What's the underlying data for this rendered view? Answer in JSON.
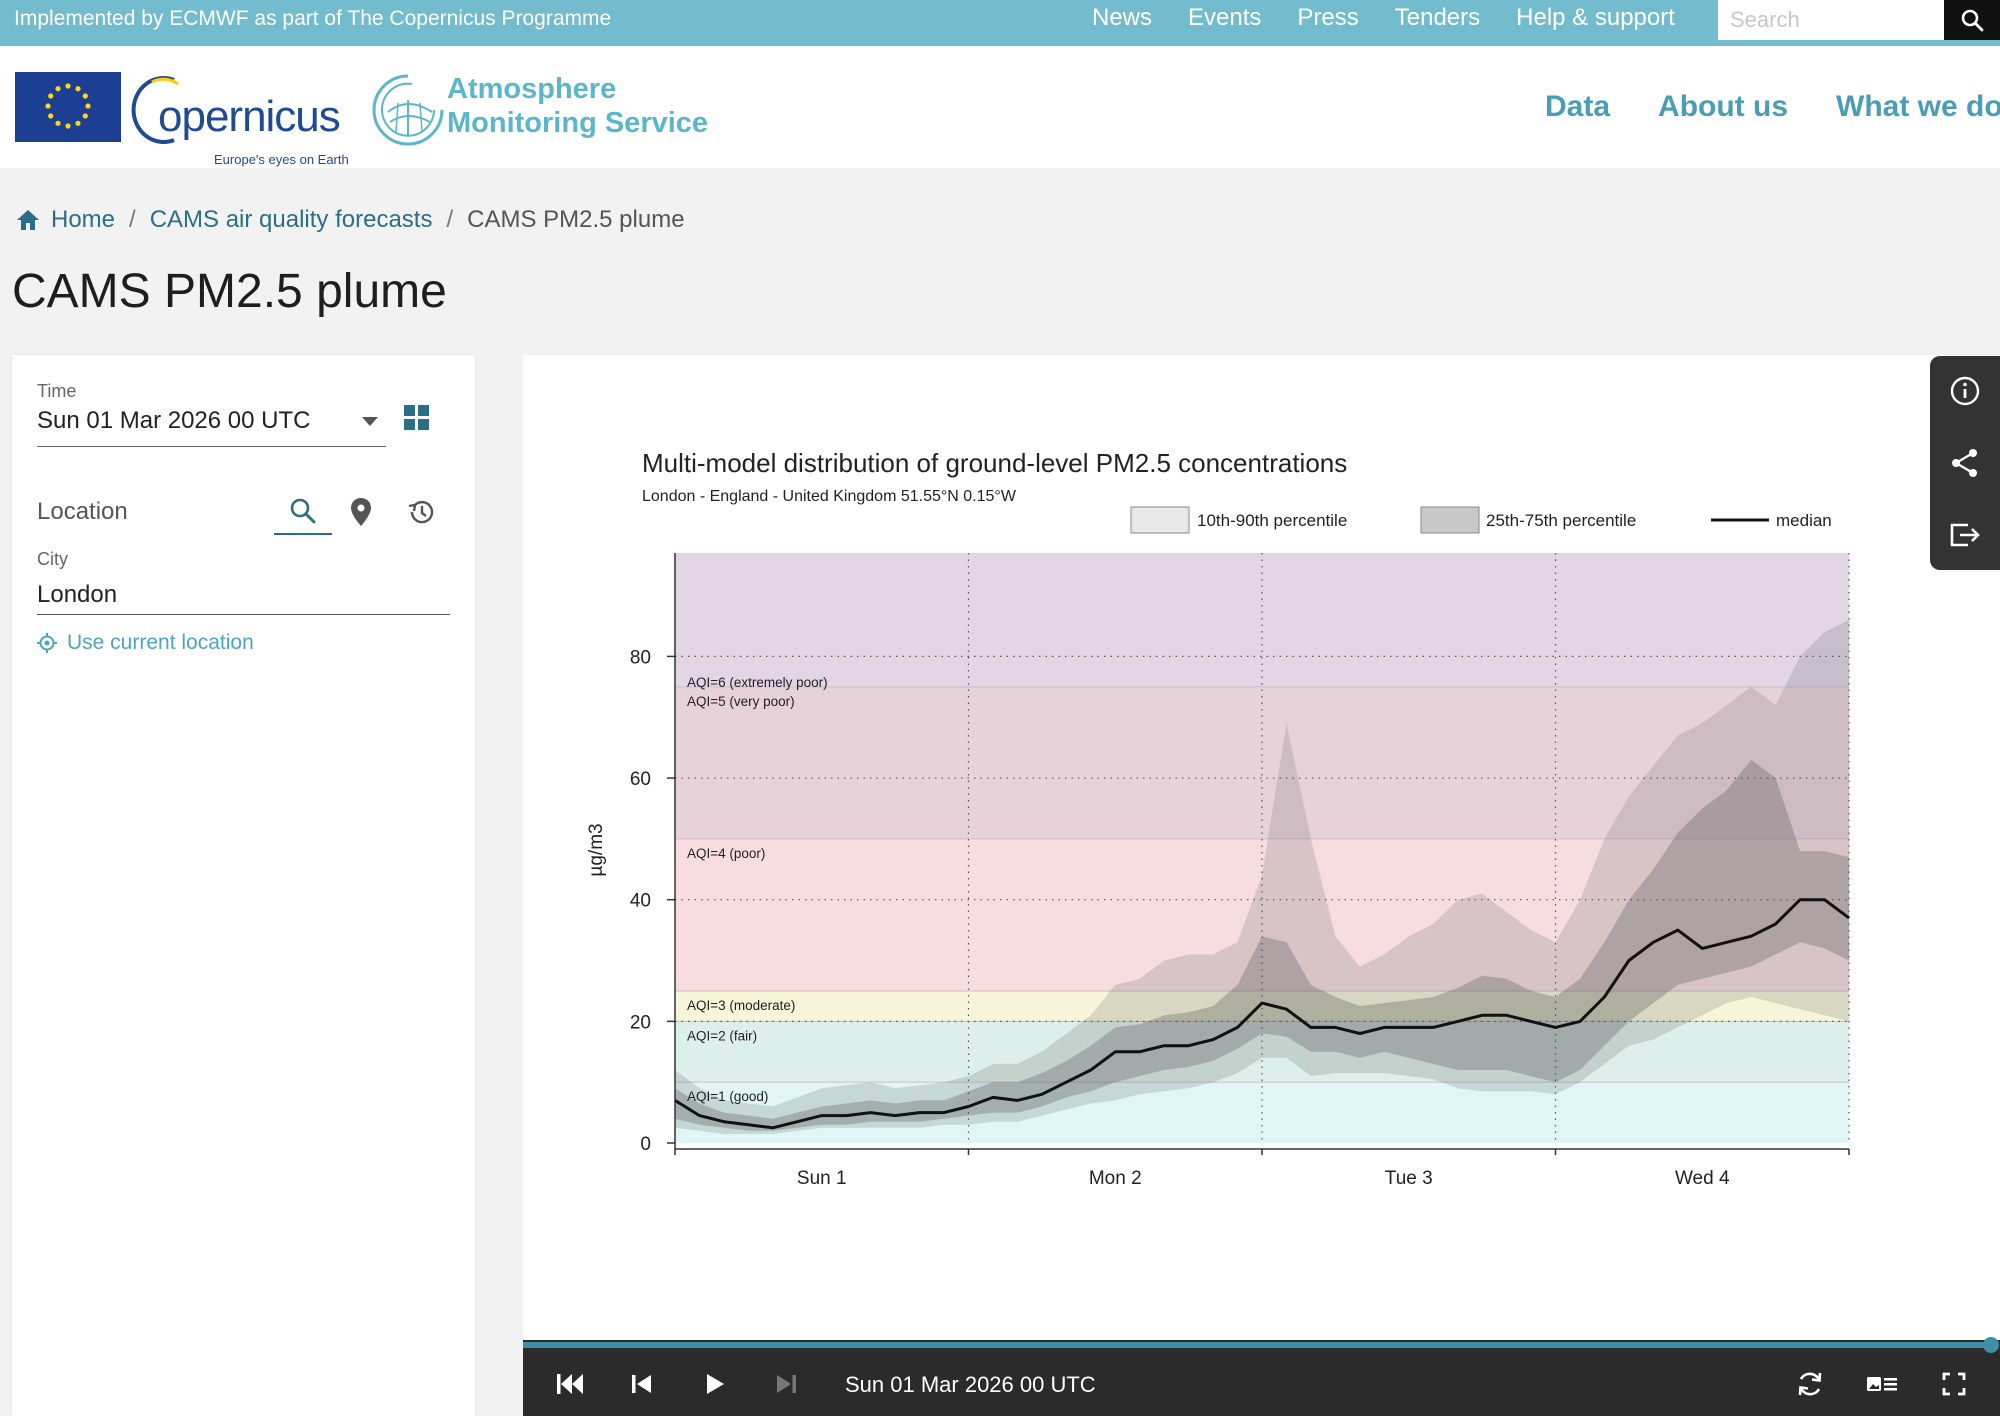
{
  "topbar": {
    "implemented_by": "Implemented by ECMWF as part of The Copernicus Programme",
    "nav": [
      "News",
      "Events",
      "Press",
      "Tenders",
      "Help & support"
    ],
    "search_placeholder": "Search"
  },
  "header": {
    "copernicus_word": "opernicus",
    "copernicus_tagline": "Europe's eyes on Earth",
    "service_name_line1": "Atmosphere",
    "service_name_line2": "Monitoring Service",
    "nav": [
      "Data",
      "About us",
      "What we do"
    ]
  },
  "breadcrumb": {
    "home": "Home",
    "parent": "CAMS air quality forecasts",
    "current": "CAMS PM2.5 plume",
    "separator": "/"
  },
  "page_title": "CAMS PM2.5 plume",
  "left_panel": {
    "time_label": "Time",
    "time_value": "Sun 01 Mar 2026 00 UTC",
    "location_label": "Location",
    "city_label": "City",
    "city_value": "London",
    "use_current_location": "Use current location"
  },
  "player": {
    "time_display": "Sun 01 Mar 2026 00 UTC",
    "progress": 1.0
  },
  "colors": {
    "topbar": "#72bccd",
    "accent": "#3e8fa6",
    "link": "#2a6f86",
    "player_bg": "#2b2b2b"
  },
  "chart_data": {
    "type": "area",
    "title": "Multi-model distribution of ground-level PM2.5 concentrations",
    "subtitle": "London - England - United Kingdom 51.55°N 0.15°W",
    "ylabel": "µg/m3",
    "xlabel": "",
    "ylim": [
      0,
      97
    ],
    "y_ticks": [
      0,
      20,
      40,
      60,
      80
    ],
    "x_range_hours": [
      0,
      96
    ],
    "x_ticks": [
      {
        "hour": 12,
        "label": "Sun 1"
      },
      {
        "hour": 36,
        "label": "Mon 2"
      },
      {
        "hour": 60,
        "label": "Tue 3"
      },
      {
        "hour": 84,
        "label": "Wed 4"
      }
    ],
    "grid": "dotted",
    "legend": {
      "placement": "top-right",
      "entries": [
        "10th-90th percentile",
        "25th-75th percentile",
        "median"
      ]
    },
    "aqi_bands": [
      {
        "label": "AQI=1 (good)",
        "from": 0,
        "to": 10,
        "color": "#dff5f6"
      },
      {
        "label": "AQI=2 (fair)",
        "from": 10,
        "to": 20,
        "color": "#ddefea"
      },
      {
        "label": "AQI=3 (moderate)",
        "from": 20,
        "to": 25,
        "color": "#f7f5d9"
      },
      {
        "label": "AQI=4 (poor)",
        "from": 25,
        "to": 50,
        "color": "#f7dde0"
      },
      {
        "label": "AQI=5 (very poor)",
        "from": 50,
        "to": 75,
        "color": "#e8d2da"
      },
      {
        "label": "AQI=6 (extremely poor)",
        "from": 75,
        "to": 97,
        "color": "#e1d5e6"
      }
    ],
    "x": [
      0,
      2,
      4,
      6,
      8,
      10,
      12,
      14,
      16,
      18,
      20,
      22,
      24,
      26,
      28,
      30,
      32,
      34,
      36,
      38,
      40,
      42,
      44,
      46,
      48,
      50,
      52,
      54,
      56,
      58,
      60,
      62,
      64,
      66,
      68,
      70,
      72,
      74,
      76,
      78,
      80,
      82,
      84,
      86,
      88,
      90,
      92,
      94,
      96
    ],
    "series": [
      {
        "name": "median",
        "values": [
          7,
          4.5,
          3.5,
          3,
          2.5,
          3.5,
          4.5,
          4.5,
          5,
          4.5,
          5,
          5,
          6,
          7.5,
          7,
          8,
          10,
          12,
          15,
          15,
          16,
          16,
          17,
          19,
          23,
          22,
          19,
          19,
          18,
          19,
          19,
          19,
          20,
          21,
          21,
          20,
          19,
          20,
          24,
          30,
          33,
          35,
          32,
          33,
          34,
          36,
          40,
          40,
          37
        ]
      },
      {
        "name": "25th percentile",
        "values": [
          4,
          3,
          2.5,
          2,
          2,
          2.5,
          3,
          3,
          3.5,
          3.5,
          3.5,
          4,
          4.5,
          5,
          5,
          6,
          7.5,
          8.5,
          10,
          11,
          12,
          12.5,
          13.5,
          15.5,
          18,
          17.5,
          15,
          15,
          14,
          15,
          14,
          13,
          12,
          12,
          12,
          11,
          10,
          12,
          16,
          20,
          23,
          26,
          27,
          28,
          29,
          31,
          33,
          32,
          30
        ]
      },
      {
        "name": "75th percentile",
        "values": [
          9,
          6.5,
          5,
          4.5,
          4,
          5,
          6,
          6.5,
          7,
          6.5,
          7,
          7,
          8.5,
          10,
          10,
          11.5,
          13.5,
          16,
          19,
          19.5,
          21,
          21.5,
          22.5,
          26,
          34,
          33,
          26,
          24,
          22.5,
          23,
          23.5,
          24,
          25.5,
          27.5,
          27,
          25,
          24,
          27,
          33,
          40,
          45,
          51,
          55,
          58,
          63,
          60,
          48,
          48,
          47
        ]
      },
      {
        "name": "10th percentile",
        "values": [
          2.5,
          2,
          1.5,
          1.5,
          1.5,
          2,
          2.5,
          2.5,
          2.5,
          2.5,
          2.5,
          3,
          3,
          3.5,
          3.5,
          4.5,
          5.5,
          6.5,
          7,
          8,
          8.5,
          9,
          10,
          11.5,
          14,
          14,
          11,
          11.5,
          11.5,
          11.5,
          11,
          10.5,
          9,
          8.5,
          8.5,
          8.5,
          8,
          10,
          13,
          16,
          17,
          19,
          21,
          23,
          24,
          23,
          22,
          21,
          20
        ]
      },
      {
        "name": "90th percentile",
        "values": [
          12,
          9,
          7,
          6.5,
          6,
          7.5,
          9,
          9.5,
          10,
          9,
          9.5,
          10,
          11,
          13,
          13,
          15,
          18,
          21,
          26,
          27,
          30,
          31,
          31,
          33,
          44,
          69,
          50,
          34,
          29,
          31,
          34,
          36,
          40,
          41,
          38,
          35,
          33,
          40,
          50,
          57,
          62,
          67,
          69,
          72,
          75,
          72,
          80,
          84,
          86
        ]
      }
    ]
  }
}
